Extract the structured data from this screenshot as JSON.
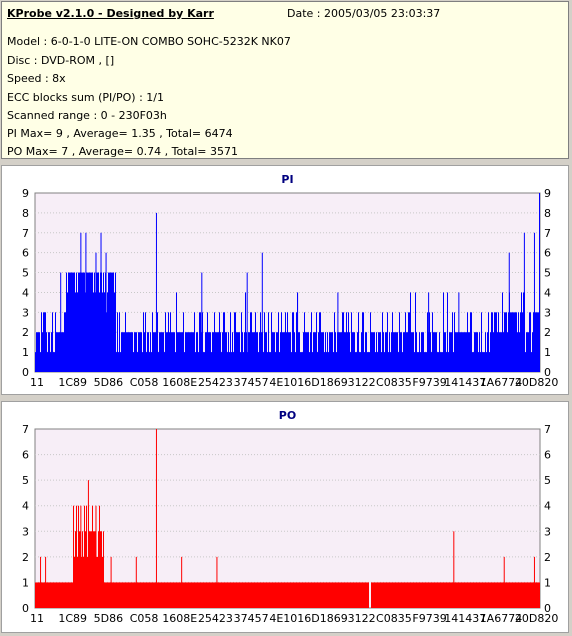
{
  "header": {
    "title": "KProbe v2.1.0 - Designed by Karr",
    "date": "Date : 2005/03/05 23:03:37",
    "lines": [
      "Model : 6-0-1-0 LITE-ON COMBO SOHC-5232K NK07",
      "Disc : DVD-ROM ,  []",
      "Speed : 8x",
      "ECC blocks sum (PI/PO) : 1/1",
      "Scanned range : 0 - 230F03h",
      "PI Max= 9 , Average= 1.35 , Total= 6474",
      "PO Max= 7 , Average= 0.74 , Total= 3571"
    ]
  },
  "colors": {
    "pi": "#0000ff",
    "po": "#ff0000",
    "plot_bg": "#f7eef7",
    "grid": "#c8c8c8"
  },
  "chart_data": [
    {
      "type": "bar",
      "title": "PI",
      "ylim": [
        0,
        9
      ],
      "yticks": [
        0,
        1,
        2,
        3,
        4,
        5,
        6,
        7,
        8,
        9
      ],
      "xtick_labels": [
        "11",
        "1C89",
        "5D86",
        "C058",
        "1608E",
        "25423",
        "37457",
        "4E101",
        "6D186",
        "93122",
        "C0835",
        "F9739",
        "141437",
        "1A6774",
        "20D820"
      ],
      "grid": true,
      "peaks": [
        {
          "x": 0.05,
          "y": 5
        },
        {
          "x": 0.07,
          "y": 5
        },
        {
          "x": 0.09,
          "y": 7
        },
        {
          "x": 0.1,
          "y": 7
        },
        {
          "x": 0.12,
          "y": 6
        },
        {
          "x": 0.13,
          "y": 7
        },
        {
          "x": 0.14,
          "y": 6
        },
        {
          "x": 0.24,
          "y": 8
        },
        {
          "x": 0.33,
          "y": 5
        },
        {
          "x": 0.42,
          "y": 5
        },
        {
          "x": 0.45,
          "y": 6
        },
        {
          "x": 0.52,
          "y": 4
        },
        {
          "x": 0.6,
          "y": 4
        },
        {
          "x": 0.78,
          "y": 4
        },
        {
          "x": 0.84,
          "y": 4
        },
        {
          "x": 0.94,
          "y": 6
        },
        {
          "x": 0.97,
          "y": 7
        },
        {
          "x": 0.99,
          "y": 7
        },
        {
          "x": 1.0,
          "y": 9
        }
      ]
    },
    {
      "type": "bar",
      "title": "PO",
      "ylim": [
        0,
        7
      ],
      "yticks": [
        0,
        1,
        2,
        3,
        4,
        5,
        6,
        7
      ],
      "xtick_labels": [
        "11",
        "1C89",
        "5D86",
        "C058",
        "1608E",
        "25423",
        "37457",
        "4E101",
        "6D186",
        "93122",
        "C0835",
        "F9739",
        "141437",
        "1A6774",
        "20D820"
      ],
      "grid": true,
      "peaks": [
        {
          "x": 0.01,
          "y": 2
        },
        {
          "x": 0.02,
          "y": 2
        },
        {
          "x": 0.08,
          "y": 3
        },
        {
          "x": 0.09,
          "y": 4
        },
        {
          "x": 0.105,
          "y": 5
        },
        {
          "x": 0.12,
          "y": 4
        },
        {
          "x": 0.15,
          "y": 2
        },
        {
          "x": 0.2,
          "y": 2
        },
        {
          "x": 0.24,
          "y": 7
        },
        {
          "x": 0.29,
          "y": 2
        },
        {
          "x": 0.36,
          "y": 2
        },
        {
          "x": 0.83,
          "y": 3
        },
        {
          "x": 0.93,
          "y": 2
        },
        {
          "x": 0.99,
          "y": 2
        }
      ]
    }
  ]
}
